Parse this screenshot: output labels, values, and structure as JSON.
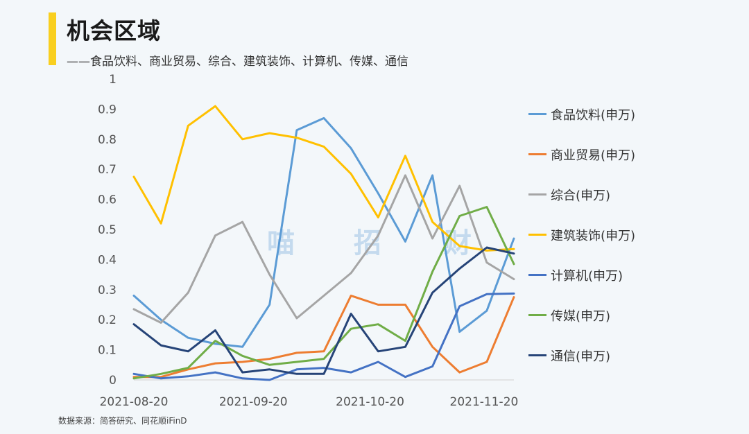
{
  "header": {
    "title": "机会区域",
    "subtitle": "——食品饮料、商业贸易、综合、建筑装饰、计算机、传媒、通信"
  },
  "source": "数据来源：简答研究、同花顺iFinD",
  "watermark": [
    "喵",
    "招",
    "财"
  ],
  "chart_data": {
    "type": "line",
    "ylim": [
      0,
      1
    ],
    "y_ticks": [
      "0",
      "0.1",
      "0.2",
      "0.3",
      "0.4",
      "0.5",
      "0.6",
      "0.7",
      "0.8",
      "0.9",
      "1"
    ],
    "x_tick_labels": [
      "2021-08-20",
      "2021-09-20",
      "2021-10-20",
      "2021-11-20"
    ],
    "x_tick_index": [
      0,
      4.4,
      8.7,
      12.9
    ],
    "grid": false,
    "legend_position": "right",
    "x": [
      0,
      1,
      2,
      3,
      4,
      5,
      6,
      7,
      8,
      9,
      10,
      11,
      12,
      13,
      14
    ],
    "series": [
      {
        "name": "食品饮料(申万)",
        "color": "#5b9bd5",
        "values": [
          0.28,
          0.2,
          0.14,
          0.12,
          0.11,
          0.25,
          0.83,
          0.87,
          0.77,
          0.62,
          0.46,
          0.68,
          0.16,
          0.23,
          0.47
        ]
      },
      {
        "name": "商业贸易(申万)",
        "color": "#ed7d31",
        "values": [
          0.01,
          0.01,
          0.035,
          0.055,
          0.06,
          0.07,
          0.09,
          0.095,
          0.28,
          0.25,
          0.25,
          0.11,
          0.025,
          0.06,
          0.275
        ]
      },
      {
        "name": "综合(申万)",
        "color": "#a5a5a5",
        "values": [
          0.235,
          0.19,
          0.29,
          0.48,
          0.525,
          0.35,
          0.205,
          0.28,
          0.355,
          0.48,
          0.68,
          0.47,
          0.645,
          0.39,
          0.335
        ]
      },
      {
        "name": "建筑装饰(申万)",
        "color": "#ffc000",
        "values": [
          0.675,
          0.52,
          0.845,
          0.91,
          0.8,
          0.82,
          0.805,
          0.775,
          0.685,
          0.54,
          0.745,
          0.525,
          0.445,
          0.43,
          0.435
        ]
      },
      {
        "name": "计算机(申万)",
        "color": "#4472c4",
        "values": [
          0.02,
          0.005,
          0.012,
          0.025,
          0.005,
          0.0,
          0.035,
          0.04,
          0.025,
          0.06,
          0.01,
          0.045,
          0.245,
          0.285,
          0.287
        ]
      },
      {
        "name": "传媒(申万)",
        "color": "#70ad47",
        "values": [
          0.005,
          0.02,
          0.04,
          0.13,
          0.08,
          0.05,
          0.06,
          0.07,
          0.17,
          0.185,
          0.13,
          0.36,
          0.545,
          0.575,
          0.385
        ]
      },
      {
        "name": "通信(申万)",
        "color": "#264478",
        "values": [
          0.185,
          0.115,
          0.095,
          0.165,
          0.025,
          0.035,
          0.02,
          0.02,
          0.22,
          0.095,
          0.11,
          0.29,
          0.37,
          0.44,
          0.42
        ]
      }
    ]
  }
}
